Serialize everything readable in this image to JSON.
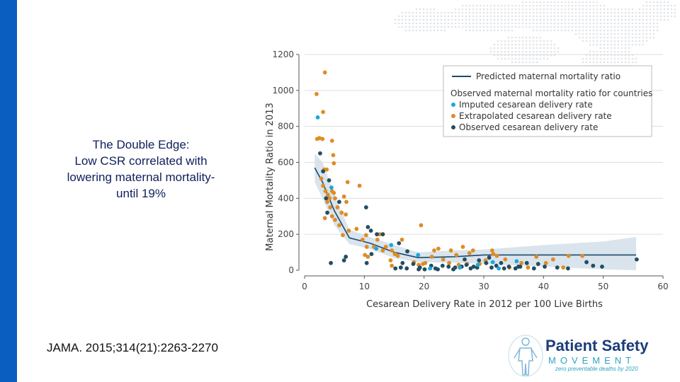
{
  "slide": {
    "title_lines": [
      "The Double Edge:",
      "Low CSR correlated with",
      "lowering maternal mortality-",
      "until 19%"
    ],
    "citation": "JAMA. 2015;314(21):2263-2270",
    "accent_color": "#0a5ec0"
  },
  "logo": {
    "name": "Patient Safety",
    "movement": "MOVEMENT",
    "tagline": "zero preventable deaths by 2020",
    "icon": "human-figure-icon"
  },
  "chart_data": {
    "type": "scatter",
    "xlabel": "Cesarean Delivery Rate in 2012 per 100 Live Births",
    "ylabel": "Maternal Mortality Ratio in 2013",
    "xlim": [
      0,
      60
    ],
    "ylim": [
      0,
      1200
    ],
    "xticks": [
      0,
      10,
      20,
      30,
      40,
      50,
      60
    ],
    "yticks": [
      0,
      200,
      400,
      600,
      800,
      1000,
      1200
    ],
    "grid": "horizontal",
    "legend_position": "top-right",
    "legend": {
      "line_label": "Predicted maternal mortality ratio",
      "group_title": "Observed maternal mortality ratio for countries"
    },
    "colors": {
      "line": "#1d4a6b",
      "band": "#cfdde9",
      "imputed": "#1ba8dc",
      "extrapolated": "#de8c26",
      "observed": "#234d63",
      "grid": "#dddddd",
      "axis": "#555555"
    },
    "predicted_line": {
      "name": "Predicted maternal mortality ratio",
      "points": [
        [
          1.7,
          570
        ],
        [
          3,
          490
        ],
        [
          5,
          330
        ],
        [
          7.5,
          180
        ],
        [
          11,
          150
        ],
        [
          15,
          100
        ],
        [
          19,
          70
        ],
        [
          25,
          75
        ],
        [
          30,
          85
        ],
        [
          40,
          85
        ],
        [
          50,
          85
        ],
        [
          55.5,
          85
        ]
      ],
      "band_upper": [
        [
          1.7,
          650
        ],
        [
          3,
          600
        ],
        [
          5,
          420
        ],
        [
          7.5,
          225
        ],
        [
          11,
          185
        ],
        [
          15,
          140
        ],
        [
          19,
          100
        ],
        [
          25,
          110
        ],
        [
          30,
          115
        ],
        [
          40,
          140
        ],
        [
          50,
          160
        ],
        [
          55.5,
          185
        ]
      ],
      "band_lower": [
        [
          1.7,
          490
        ],
        [
          3,
          400
        ],
        [
          5,
          250
        ],
        [
          7.5,
          145
        ],
        [
          11,
          118
        ],
        [
          15,
          68
        ],
        [
          19,
          45
        ],
        [
          25,
          42
        ],
        [
          30,
          35
        ],
        [
          40,
          20
        ],
        [
          50,
          5
        ],
        [
          55.5,
          0
        ]
      ]
    },
    "series": [
      {
        "name": "Imputed cesarean delivery rate",
        "points": [
          [
            2.2,
            850
          ],
          [
            4.5,
            460
          ],
          [
            12,
            120
          ],
          [
            14.5,
            140
          ],
          [
            19,
            85
          ],
          [
            29,
            30
          ],
          [
            31.5,
            45
          ],
          [
            32.5,
            10
          ],
          [
            35.5,
            50
          ],
          [
            26,
            15
          ],
          [
            21,
            10
          ]
        ]
      },
      {
        "name": "Extrapolated cesarean delivery rate",
        "points": [
          [
            2.0,
            980
          ],
          [
            3.4,
            1100
          ],
          [
            3.1,
            880
          ],
          [
            2.1,
            730
          ],
          [
            2.5,
            735
          ],
          [
            3.0,
            730
          ],
          [
            4.6,
            720
          ],
          [
            3.3,
            560
          ],
          [
            3.7,
            560
          ],
          [
            4.9,
            595
          ],
          [
            4.8,
            640
          ],
          [
            2.8,
            510
          ],
          [
            3.1,
            470
          ],
          [
            3.5,
            440
          ],
          [
            3.9,
            420
          ],
          [
            4.2,
            400
          ],
          [
            4.6,
            440
          ],
          [
            4.9,
            430
          ],
          [
            5.1,
            400
          ],
          [
            3.8,
            380
          ],
          [
            4.3,
            350
          ],
          [
            5.5,
            350
          ],
          [
            6.6,
            410
          ],
          [
            7.2,
            490
          ],
          [
            7.0,
            380
          ],
          [
            6.2,
            320
          ],
          [
            6.9,
            310
          ],
          [
            4.6,
            300
          ],
          [
            5.1,
            280
          ],
          [
            3.4,
            290
          ],
          [
            5.8,
            250
          ],
          [
            7.4,
            220
          ],
          [
            6.4,
            195
          ],
          [
            9.2,
            470
          ],
          [
            8.7,
            230
          ],
          [
            10.3,
            195
          ],
          [
            9.7,
            170
          ],
          [
            10.4,
            130
          ],
          [
            11.6,
            130
          ],
          [
            12.6,
            200
          ],
          [
            12.2,
            170
          ],
          [
            13.6,
            130
          ],
          [
            13.1,
            110
          ],
          [
            10.1,
            85
          ],
          [
            10.6,
            75
          ],
          [
            14.6,
            110
          ],
          [
            15.1,
            90
          ],
          [
            15.6,
            80
          ],
          [
            14.4,
            55
          ],
          [
            16.3,
            170
          ],
          [
            19.5,
            250
          ],
          [
            14.6,
            25
          ],
          [
            19.1,
            30
          ],
          [
            20.2,
            40
          ],
          [
            21.3,
            75
          ],
          [
            22.4,
            120
          ],
          [
            21.7,
            110
          ],
          [
            23.2,
            60
          ],
          [
            24.2,
            40
          ],
          [
            25.4,
            85
          ],
          [
            26.5,
            130
          ],
          [
            24.5,
            110
          ],
          [
            28.2,
            110
          ],
          [
            27.6,
            95
          ],
          [
            29.3,
            35
          ],
          [
            30.3,
            55
          ],
          [
            31.6,
            90
          ],
          [
            31.4,
            110
          ],
          [
            32.2,
            80
          ],
          [
            34.3,
            15
          ],
          [
            33.6,
            60
          ],
          [
            36.3,
            40
          ],
          [
            37.4,
            15
          ],
          [
            38.8,
            75
          ],
          [
            40.4,
            40
          ],
          [
            41.6,
            60
          ],
          [
            43.3,
            15
          ],
          [
            44.2,
            80
          ],
          [
            46.5,
            80
          ],
          [
            18.3,
            45
          ],
          [
            19.8,
            35
          ],
          [
            27.2,
            35
          ],
          [
            25.8,
            30
          ]
        ]
      },
      {
        "name": "Observed cesarean delivery rate",
        "points": [
          [
            2.6,
            650
          ],
          [
            3.1,
            550
          ],
          [
            4.1,
            500
          ],
          [
            3.6,
            400
          ],
          [
            3.8,
            320
          ],
          [
            4.4,
            40
          ],
          [
            6.9,
            75
          ],
          [
            6.6,
            55
          ],
          [
            5.8,
            380
          ],
          [
            10.3,
            350
          ],
          [
            10.6,
            240
          ],
          [
            11.1,
            220
          ],
          [
            12.1,
            200
          ],
          [
            13.1,
            200
          ],
          [
            10.4,
            40
          ],
          [
            11.2,
            90
          ],
          [
            15.8,
            150
          ],
          [
            17.2,
            105
          ],
          [
            16.4,
            40
          ],
          [
            16.1,
            15
          ],
          [
            17.1,
            10
          ],
          [
            18.2,
            35
          ],
          [
            19.3,
            15
          ],
          [
            20.1,
            5
          ],
          [
            21.2,
            25
          ],
          [
            22.3,
            5
          ],
          [
            24.1,
            20
          ],
          [
            25.2,
            15
          ],
          [
            26.3,
            20
          ],
          [
            27.1,
            30
          ],
          [
            27.8,
            10
          ],
          [
            28.3,
            20
          ],
          [
            29.2,
            55
          ],
          [
            30.4,
            40
          ],
          [
            31.3,
            15
          ],
          [
            32.1,
            25
          ],
          [
            33.4,
            10
          ],
          [
            34.2,
            20
          ],
          [
            35.3,
            10
          ],
          [
            36.1,
            20
          ],
          [
            37.2,
            40
          ],
          [
            38.4,
            10
          ],
          [
            39.1,
            35
          ],
          [
            40.2,
            20
          ],
          [
            42.3,
            15
          ],
          [
            44.1,
            10
          ],
          [
            47.2,
            45
          ],
          [
            48.3,
            25
          ],
          [
            49.8,
            20
          ],
          [
            55.6,
            60
          ],
          [
            15.2,
            10
          ],
          [
            19.1,
            5
          ],
          [
            21.9,
            10
          ],
          [
            24.9,
            5
          ],
          [
            26.8,
            60
          ],
          [
            28.9,
            15
          ],
          [
            30.9,
            70
          ],
          [
            32.9,
            40
          ],
          [
            35.8,
            20
          ],
          [
            23.1,
            25
          ]
        ]
      }
    ]
  }
}
